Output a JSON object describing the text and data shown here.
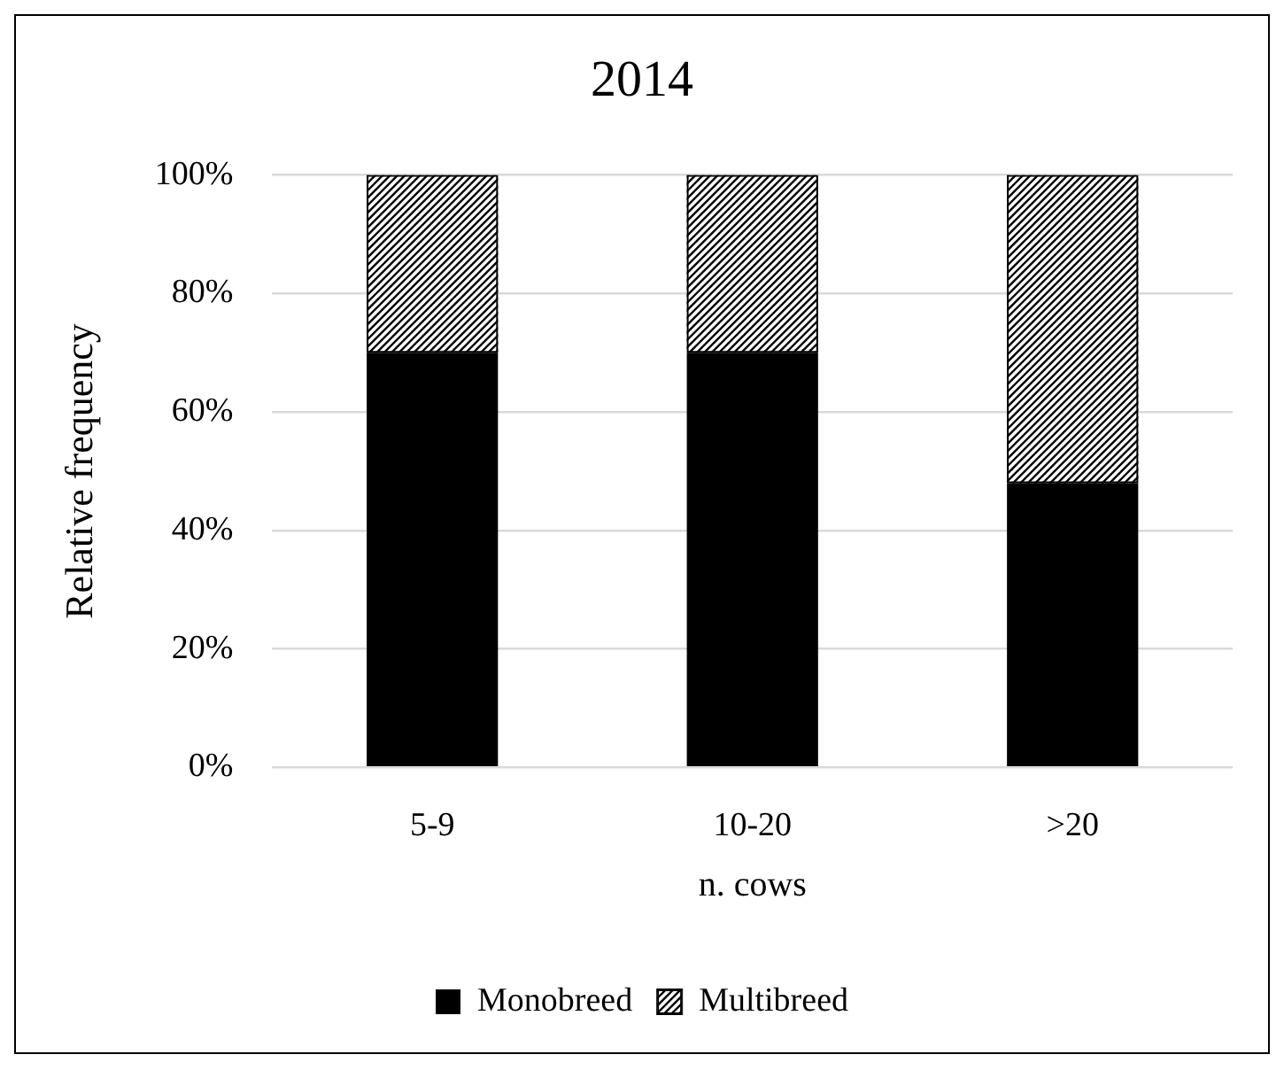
{
  "chart_data": {
    "type": "bar",
    "title": "2014",
    "xlabel": "n. cows",
    "ylabel": "Relative frequency",
    "categories": [
      "5-9",
      "10-20",
      ">20"
    ],
    "series": [
      {
        "name": "Monobreed",
        "color": "#000000",
        "values": [
          70,
          70,
          48
        ]
      },
      {
        "name": "Multibreed",
        "color": "#000000",
        "values": [
          30,
          30,
          52
        ]
      }
    ],
    "stacked": true,
    "ylim": [
      0,
      100
    ],
    "yticks": [
      {
        "value": 0,
        "label": "0%"
      },
      {
        "value": 20,
        "label": "20%"
      },
      {
        "value": 40,
        "label": "40%"
      },
      {
        "value": 60,
        "label": "60%"
      },
      {
        "value": 80,
        "label": "80%"
      },
      {
        "value": 100,
        "label": "100%"
      }
    ],
    "grid": "y",
    "legend": "bottom"
  }
}
